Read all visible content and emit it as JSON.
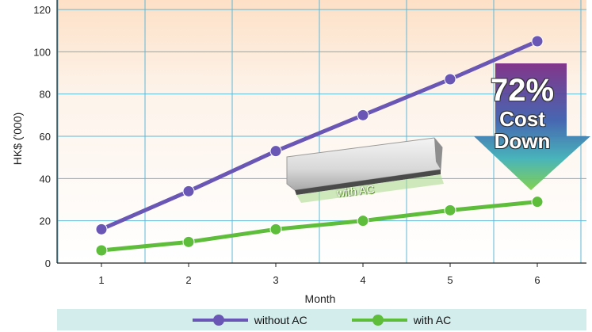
{
  "chart_data": {
    "type": "line",
    "title": "",
    "xlabel": "Month",
    "ylabel": "HK$ ('000)",
    "categories": [
      "1",
      "2",
      "3",
      "4",
      "5",
      "6"
    ],
    "ylim": [
      0,
      120
    ],
    "yticks": [
      "0",
      "20",
      "40",
      "60",
      "80",
      "100",
      "120"
    ],
    "grid": true,
    "legend_position": "bottom",
    "series": [
      {
        "name": "without AC",
        "values": [
          16,
          34,
          53,
          70,
          87,
          105
        ],
        "color": "#6a56b4"
      },
      {
        "name": "with AC",
        "values": [
          6,
          10,
          16,
          20,
          25,
          29
        ],
        "color": "#5ebd3a"
      }
    ]
  },
  "annotation": {
    "percent": "72%",
    "line1": "Cost",
    "line2": "Down"
  },
  "device_label": "with AC",
  "legend": {
    "item1": "without AC",
    "item2": "with AC"
  }
}
